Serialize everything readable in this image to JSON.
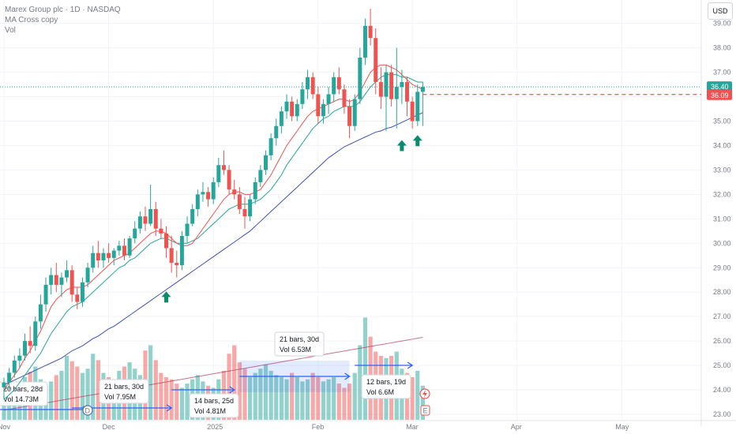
{
  "header": {
    "symbol_line": "Marex Group plc · 1D · NASDAQ",
    "indicator_ma": "MA Cross copy",
    "indicator_vol": "Vol"
  },
  "currency_button": "USD",
  "colors": {
    "up": "#26a69a",
    "down": "#ef5350",
    "ma_fast": "#ef5350",
    "ma_mid": "#26a69a",
    "ma_slow": "#3f51b5",
    "measure": "#2962ff"
  },
  "chart_data": {
    "type": "candlestick",
    "ylim": [
      23,
      39.7
    ],
    "yticks": [
      23,
      24,
      25,
      26,
      27,
      28,
      29,
      30,
      31,
      32,
      33,
      34,
      35,
      36,
      37,
      38,
      39
    ],
    "ytick_labels": [
      "23.00",
      "24.00",
      "25.00",
      "26.00",
      "27.00",
      "28.00",
      "29.00",
      "30.00",
      "31.00",
      "32.00",
      "33.00",
      "34.00",
      "35.00",
      "36.00",
      "37.00",
      "38.00",
      "39.00"
    ],
    "xticks": [
      {
        "label": "Nov",
        "index": 0
      },
      {
        "label": "Dec",
        "index": 20
      },
      {
        "label": "2025",
        "index": 40
      },
      {
        "label": "Feb",
        "index": 60
      },
      {
        "label": "Mar",
        "index": 78
      },
      {
        "label": "Apr",
        "index": 98
      },
      {
        "label": "May",
        "index": 118
      }
    ],
    "ohlc": [
      [
        24.1,
        24.5,
        23.6,
        24.3
      ],
      [
        24.3,
        24.9,
        24.0,
        24.7
      ],
      [
        24.7,
        25.4,
        24.5,
        25.2
      ],
      [
        25.2,
        25.7,
        24.9,
        25.4
      ],
      [
        25.4,
        26.3,
        25.2,
        26.0
      ],
      [
        26.0,
        26.6,
        25.5,
        25.8
      ],
      [
        25.8,
        27.0,
        25.6,
        26.8
      ],
      [
        26.8,
        27.9,
        26.5,
        27.5
      ],
      [
        27.5,
        28.6,
        27.2,
        28.3
      ],
      [
        28.3,
        29.0,
        27.9,
        28.7
      ],
      [
        28.7,
        29.2,
        28.0,
        28.3
      ],
      [
        28.3,
        28.8,
        27.8,
        28.6
      ],
      [
        28.6,
        29.3,
        28.4,
        28.9
      ],
      [
        28.9,
        29.1,
        27.6,
        27.9
      ],
      [
        27.9,
        28.2,
        27.3,
        27.6
      ],
      [
        27.6,
        28.6,
        27.4,
        28.4
      ],
      [
        28.4,
        29.2,
        28.2,
        29.0
      ],
      [
        29.0,
        29.9,
        28.8,
        29.6
      ],
      [
        29.6,
        30.1,
        29.0,
        29.3
      ],
      [
        29.3,
        29.8,
        29.0,
        29.6
      ],
      [
        29.6,
        30.0,
        29.2,
        29.4
      ],
      [
        29.4,
        29.8,
        29.1,
        29.7
      ],
      [
        29.7,
        30.1,
        29.5,
        29.9
      ],
      [
        29.9,
        30.2,
        29.3,
        29.5
      ],
      [
        29.5,
        30.3,
        29.4,
        30.2
      ],
      [
        30.2,
        30.9,
        30.0,
        30.6
      ],
      [
        30.6,
        31.3,
        30.4,
        31.1
      ],
      [
        31.1,
        31.5,
        30.5,
        30.8
      ],
      [
        30.8,
        32.4,
        30.7,
        31.4
      ],
      [
        31.4,
        31.7,
        30.3,
        30.6
      ],
      [
        30.6,
        31.0,
        30.2,
        30.4
      ],
      [
        30.4,
        30.7,
        29.4,
        29.8
      ],
      [
        29.8,
        30.3,
        28.8,
        29.2
      ],
      [
        29.2,
        29.7,
        28.6,
        29.1
      ],
      [
        29.1,
        30.5,
        28.9,
        30.3
      ],
      [
        30.3,
        31.1,
        30.0,
        30.8
      ],
      [
        30.8,
        31.6,
        30.7,
        31.4
      ],
      [
        31.4,
        32.2,
        31.1,
        32.0
      ],
      [
        32.0,
        32.5,
        31.7,
        32.1
      ],
      [
        32.1,
        32.3,
        31.5,
        31.8
      ],
      [
        31.8,
        32.7,
        31.6,
        32.5
      ],
      [
        32.5,
        33.5,
        32.3,
        33.2
      ],
      [
        33.2,
        33.8,
        32.8,
        33.0
      ],
      [
        33.0,
        33.2,
        32.0,
        32.2
      ],
      [
        32.2,
        32.6,
        31.8,
        32.0
      ],
      [
        32.0,
        32.3,
        31.2,
        31.4
      ],
      [
        31.4,
        31.9,
        30.6,
        31.1
      ],
      [
        31.1,
        32.0,
        30.9,
        31.8
      ],
      [
        31.8,
        32.7,
        31.6,
        32.5
      ],
      [
        32.5,
        33.2,
        32.3,
        33.0
      ],
      [
        33.0,
        33.8,
        32.8,
        33.6
      ],
      [
        33.6,
        34.5,
        33.4,
        34.3
      ],
      [
        34.3,
        35.1,
        34.0,
        34.8
      ],
      [
        34.8,
        35.6,
        34.5,
        35.4
      ],
      [
        35.4,
        36.1,
        35.1,
        35.8
      ],
      [
        35.8,
        36.0,
        35.0,
        35.2
      ],
      [
        35.2,
        35.9,
        35.0,
        35.7
      ],
      [
        35.7,
        36.6,
        35.5,
        36.3
      ],
      [
        36.3,
        37.1,
        35.9,
        36.8
      ],
      [
        36.8,
        37.0,
        35.9,
        36.1
      ],
      [
        36.1,
        36.4,
        34.9,
        35.2
      ],
      [
        35.2,
        35.9,
        34.9,
        35.7
      ],
      [
        35.7,
        36.4,
        35.3,
        36.1
      ],
      [
        36.1,
        37.0,
        35.8,
        36.8
      ],
      [
        36.8,
        37.2,
        36.1,
        36.3
      ],
      [
        36.3,
        36.5,
        35.3,
        35.6
      ],
      [
        35.6,
        35.9,
        34.3,
        34.8
      ],
      [
        34.8,
        36.1,
        34.6,
        35.9
      ],
      [
        35.9,
        38.0,
        35.7,
        37.6
      ],
      [
        37.6,
        39.2,
        37.3,
        38.9
      ],
      [
        38.9,
        39.6,
        38.1,
        38.4
      ],
      [
        38.4,
        38.8,
        36.1,
        36.6
      ],
      [
        36.6,
        37.2,
        35.5,
        36.0
      ],
      [
        36.0,
        37.3,
        34.6,
        37.0
      ],
      [
        37.0,
        37.3,
        35.6,
        35.9
      ],
      [
        35.9,
        38.0,
        34.7,
        36.4
      ],
      [
        36.4,
        37.1,
        35.7,
        36.6
      ],
      [
        36.6,
        36.8,
        35.2,
        35.8
      ],
      [
        35.8,
        36.0,
        34.7,
        35.0
      ],
      [
        35.0,
        36.5,
        34.8,
        36.2
      ],
      [
        36.2,
        36.6,
        34.8,
        36.4
      ]
    ],
    "volume_scale_max": 100,
    "volume": [
      20,
      22,
      30,
      35,
      40,
      45,
      50,
      38,
      32,
      36,
      42,
      46,
      60,
      55,
      50,
      44,
      48,
      62,
      56,
      44,
      40,
      38,
      46,
      50,
      54,
      48,
      42,
      65,
      70,
      56,
      44,
      40,
      38,
      34,
      30,
      34,
      38,
      42,
      36,
      32,
      30,
      38,
      46,
      62,
      70,
      54,
      48,
      40,
      44,
      48,
      52,
      46,
      42,
      40,
      38,
      44,
      40,
      36,
      38,
      44,
      40,
      36,
      38,
      40,
      34,
      30,
      34,
      44,
      70,
      96,
      78,
      64,
      60,
      58,
      60,
      64,
      48,
      44,
      40,
      46,
      32
    ],
    "ma_fast": [
      24.0,
      24.3,
      24.6,
      24.9,
      25.3,
      25.6,
      26.0,
      26.4,
      26.9,
      27.4,
      27.7,
      27.9,
      28.1,
      28.2,
      28.2,
      28.2,
      28.3,
      28.5,
      28.7,
      28.9,
      29.1,
      29.3,
      29.4,
      29.5,
      29.6,
      29.8,
      30.0,
      30.2,
      30.4,
      30.5,
      30.5,
      30.4,
      30.2,
      30.0,
      29.9,
      29.9,
      30.0,
      30.3,
      30.6,
      30.9,
      31.2,
      31.5,
      31.8,
      32.0,
      32.1,
      32.1,
      32.0,
      32.0,
      32.1,
      32.2,
      32.5,
      32.8,
      33.2,
      33.6,
      34.0,
      34.3,
      34.6,
      34.9,
      35.2,
      35.4,
      35.5,
      35.6,
      35.7,
      35.8,
      35.9,
      35.9,
      35.8,
      35.9,
      36.2,
      36.6,
      37.0,
      37.2,
      37.3,
      37.3,
      37.2,
      37.1,
      36.9,
      36.7,
      36.5,
      36.4,
      36.3
    ],
    "ma_mid": [
      23.6,
      23.8,
      24.0,
      24.3,
      24.6,
      24.9,
      25.2,
      25.5,
      25.9,
      26.3,
      26.6,
      26.9,
      27.2,
      27.4,
      27.5,
      27.6,
      27.8,
      28.0,
      28.2,
      28.4,
      28.6,
      28.8,
      29.0,
      29.1,
      29.3,
      29.4,
      29.6,
      29.8,
      30.0,
      30.1,
      30.2,
      30.2,
      30.1,
      30.0,
      30.0,
      30.0,
      30.1,
      30.2,
      30.4,
      30.6,
      30.8,
      31.0,
      31.2,
      31.4,
      31.5,
      31.6,
      31.6,
      31.6,
      31.7,
      31.8,
      32.0,
      32.2,
      32.5,
      32.8,
      33.2,
      33.5,
      33.8,
      34.1,
      34.4,
      34.7,
      34.9,
      35.1,
      35.2,
      35.4,
      35.5,
      35.6,
      35.6,
      35.6,
      35.8,
      36.1,
      36.4,
      36.6,
      36.8,
      36.9,
      36.9,
      36.9,
      36.8,
      36.8,
      36.7,
      36.6,
      36.6
    ],
    "ma_slow": [
      24.2,
      24.3,
      24.4,
      24.5,
      24.6,
      24.7,
      24.8,
      24.9,
      25.0,
      25.1,
      25.2,
      25.3,
      25.45,
      25.6,
      25.7,
      25.8,
      25.95,
      26.1,
      26.2,
      26.35,
      26.5,
      26.6,
      26.75,
      26.9,
      27.05,
      27.2,
      27.35,
      27.5,
      27.65,
      27.8,
      27.95,
      28.1,
      28.25,
      28.4,
      28.55,
      28.7,
      28.85,
      29.0,
      29.15,
      29.3,
      29.45,
      29.6,
      29.75,
      29.9,
      30.05,
      30.2,
      30.35,
      30.5,
      30.7,
      30.9,
      31.1,
      31.3,
      31.5,
      31.7,
      31.9,
      32.1,
      32.3,
      32.5,
      32.7,
      32.9,
      33.1,
      33.3,
      33.5,
      33.65,
      33.8,
      33.95,
      34.05,
      34.15,
      34.25,
      34.35,
      34.45,
      34.55,
      34.6,
      34.7,
      34.75,
      34.85,
      34.95,
      35.05,
      35.15,
      35.25,
      35.35
    ],
    "volume_ma_end": "rising",
    "last_price_label": "36.40",
    "last_price": 36.4,
    "ref_price_label": "36.09",
    "ref_price": 36.09,
    "signal_arrows": [
      {
        "index": 31,
        "price": 27.8
      },
      {
        "index": 76,
        "price": 34.0
      },
      {
        "index": 79,
        "price": 34.2
      }
    ],
    "measurements": [
      {
        "bars_label": "20 bars, 28d",
        "vol_label": "Vol 14.73M"
      },
      {
        "bars_label": "21 bars, 30d",
        "vol_label": "Vol 7.95M"
      },
      {
        "bars_label": "14 bars, 25d",
        "vol_label": "Vol 4.81M"
      },
      {
        "bars_label": "21 bars, 30d",
        "vol_label": "Vol 6.53M"
      },
      {
        "bars_label": "12 bars, 19d",
        "vol_label": "Vol 6.6M"
      }
    ],
    "event_markers": [
      {
        "label": "D"
      },
      {
        "label": "E"
      }
    ]
  }
}
